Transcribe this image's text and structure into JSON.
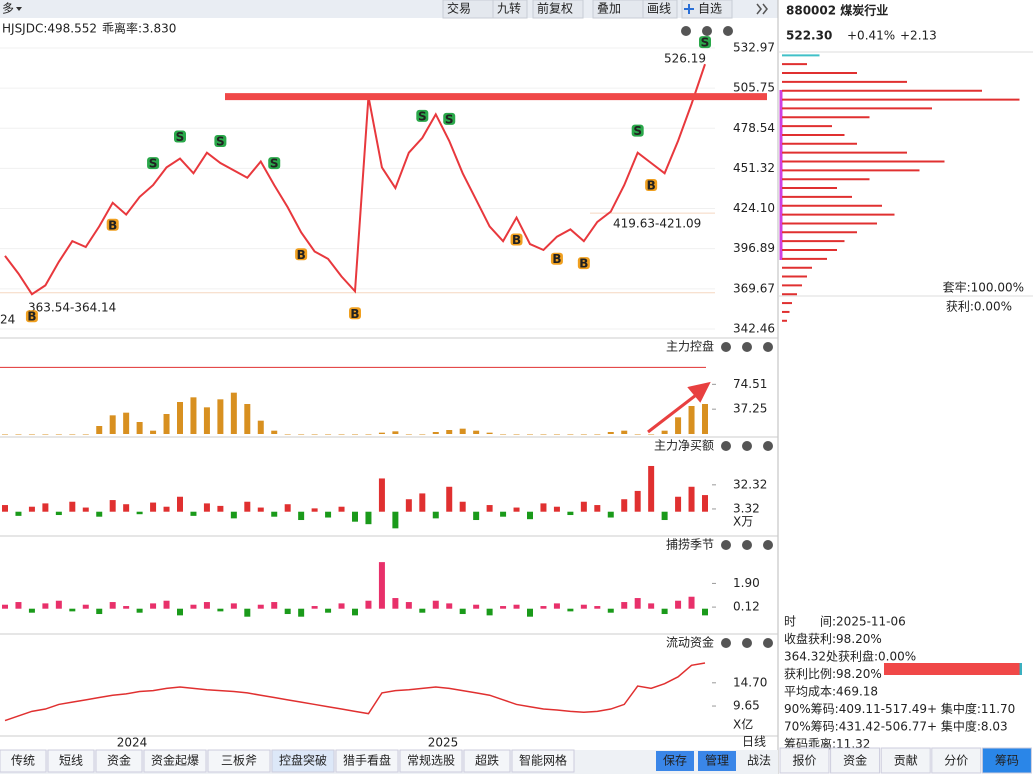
{
  "toolbar": {
    "menu": "多",
    "buttons": [
      "交易",
      "九转",
      "前复权",
      "叠加",
      "画线",
      "自选"
    ]
  },
  "legend": [
    {
      "label": "HJSJDC:498.552",
      "color": "#e03030"
    },
    {
      "label": "乖离率:3.830",
      "color": "#d08a10"
    }
  ],
  "main": {
    "ylim": [
      337,
      550.6
    ],
    "yticks": [
      532.97,
      505.75,
      478.54,
      451.32,
      {
        "value": 424.1,
        "label": "424.10"
      },
      396.89,
      369.67,
      342.46
    ],
    "close": [
      392,
      380,
      366,
      372,
      388,
      402,
      398,
      412,
      428,
      420,
      432,
      440,
      452,
      458,
      448,
      462,
      455,
      450,
      445,
      456,
      440,
      425,
      408,
      395,
      390,
      378,
      368,
      500,
      452,
      438,
      462,
      472,
      488,
      470,
      448,
      430,
      412,
      402,
      418,
      400,
      396,
      405,
      410,
      402,
      415,
      422,
      440,
      462,
      455,
      448,
      470,
      495,
      522
    ],
    "color": "#e8383d",
    "resistance": 500,
    "resistance_color": "#f04848",
    "annotations": [
      "526.19",
      "363.54-364.14",
      "419.63-421.09",
      "24"
    ],
    "signals": [
      "S",
      "S",
      "S",
      "S",
      "S",
      "S",
      "S",
      "S",
      "B",
      "B",
      "B",
      "B",
      "B",
      "B",
      "B",
      "B"
    ]
  },
  "panels": [
    {
      "title": "主力控盘",
      "style": "bar",
      "ylim": [
        0,
        117
      ],
      "yticks": [
        74.51,
        37.25
      ],
      "color": "#d89020",
      "level": 100,
      "level_color": "#e03030",
      "values": [
        0,
        0,
        0,
        0,
        0,
        0,
        0,
        12,
        28,
        32,
        18,
        5,
        30,
        48,
        55,
        40,
        52,
        62,
        45,
        20,
        5,
        0,
        0,
        0,
        0,
        0,
        0,
        0,
        2,
        4,
        0,
        0,
        3,
        6,
        8,
        5,
        2,
        0,
        0,
        0,
        0,
        0,
        0,
        0,
        0,
        3,
        5,
        0,
        0,
        5,
        25,
        42,
        45
      ]
    },
    {
      "title": "主力净买额",
      "style": "bar",
      "ylim": [
        -22,
        67
      ],
      "yticks": [
        32.32,
        3.32
      ],
      "unit": "X万",
      "up_color": "#e03030",
      "down_color": "#1a9a1a",
      "values": [
        8,
        -5,
        6,
        10,
        -4,
        12,
        5,
        -6,
        14,
        9,
        -3,
        11,
        6,
        18,
        -5,
        10,
        7,
        -8,
        12,
        5,
        -6,
        9,
        -10,
        4,
        -7,
        6,
        -12,
        -15,
        40,
        -20,
        15,
        22,
        -8,
        30,
        12,
        -10,
        8,
        -6,
        5,
        -9,
        10,
        6,
        -4,
        12,
        8,
        -7,
        15,
        25,
        55,
        -10,
        18,
        30,
        20
      ]
    },
    {
      "title": "捕捞季节",
      "style": "bar",
      "ylim": [
        -1.45,
        3.96
      ],
      "yticks": [
        {
          "value": 1.9,
          "label": "1.90"
        },
        0.12
      ],
      "up_color": "#e8306a",
      "down_color": "#1a9a1a",
      "values": [
        0.3,
        0.5,
        -0.3,
        0.4,
        0.6,
        -0.2,
        0.3,
        -0.4,
        0.5,
        0.2,
        -0.3,
        0.4,
        0.6,
        -0.5,
        0.3,
        0.5,
        -0.2,
        0.4,
        -0.6,
        0.3,
        0.5,
        -0.4,
        -0.6,
        0.2,
        -0.3,
        0.4,
        -0.5,
        0.6,
        3.5,
        0.8,
        0.5,
        -0.3,
        0.6,
        0.4,
        -0.4,
        0.3,
        -0.5,
        0.2,
        0.3,
        -0.6,
        0.2,
        0.4,
        -0.2,
        0.3,
        0.2,
        -0.3,
        0.5,
        0.8,
        0.4,
        -0.4,
        0.6,
        0.9,
        -0.5
      ]
    },
    {
      "title": "流动资金",
      "style": "line",
      "ylim": [
        3.79,
        20.96
      ],
      "yticks": [
        {
          "value": 14.7,
          "label": "14.70"
        },
        9.65
      ],
      "unit": "X亿",
      "color": "#e03030",
      "values": [
        6.5,
        7.5,
        8.5,
        9,
        10,
        10.5,
        11,
        11.5,
        12,
        12.3,
        12.8,
        13,
        13.5,
        13.8,
        13.5,
        13.2,
        13,
        12.8,
        12.5,
        12,
        11.5,
        11,
        10.5,
        10,
        9.5,
        9,
        8.5,
        8,
        12.5,
        13,
        13.2,
        13.5,
        13.8,
        13.5,
        13,
        12.5,
        12,
        11,
        10,
        9.5,
        9,
        8.8,
        8.5,
        8.3,
        8.5,
        9,
        10,
        14,
        13.5,
        14.5,
        16,
        18.5,
        19
      ]
    }
  ],
  "xaxis": {
    "labels": [
      "2024",
      "2025"
    ],
    "period": "日线"
  },
  "bottom_tabs": {
    "left": [
      "传统",
      "短线",
      "资金",
      "资金起爆",
      "三板斧",
      "控盘突破",
      "猎手看盘",
      "常规选股",
      "超跌",
      "智能网格"
    ],
    "active": 5,
    "right": [
      "保存",
      "管理",
      "战法"
    ]
  },
  "quote": {
    "code_name": "880002 煤炭行业",
    "price": "522.30",
    "pct": "+0.41%",
    "chg": "+2.13"
  },
  "chips": {
    "prices": [
      348,
      354,
      360,
      366,
      372,
      378,
      384,
      390,
      396,
      402,
      408,
      414,
      420,
      426,
      432,
      438,
      444,
      450,
      456,
      462,
      468,
      474,
      480,
      486,
      492,
      498,
      504,
      510,
      516,
      522,
      528
    ],
    "volumes": [
      2,
      3,
      4,
      6,
      8,
      10,
      12,
      18,
      22,
      25,
      30,
      38,
      45,
      40,
      28,
      22,
      35,
      55,
      65,
      50,
      30,
      25,
      20,
      35,
      60,
      95,
      80,
      50,
      30,
      10,
      15
    ],
    "current": 522.3,
    "xlim": [
      0,
      100
    ],
    "profit_color": "#e03030",
    "trapped_color": "#40c0c8",
    "trapped": "套牢:100.00%",
    "profit": "获利:0.00%"
  },
  "chip_info": {
    "lines": [
      "时　　间:2025-11-06",
      "收盘获利:98.20%",
      "364.32处获利盘:0.00%",
      "获利比例:98.20%",
      "平均成本:469.18",
      "90%筹码:409.11-517.49+ 集中度:11.70",
      "70%筹码:431.42-506.77+ 集中度:8.03",
      "筹码乖离:11.32"
    ],
    "profit_ratio": 98.2
  },
  "right_tabs": {
    "items": [
      "报价",
      "资金",
      "贡献",
      "分价",
      "筹码"
    ],
    "active": 4
  }
}
